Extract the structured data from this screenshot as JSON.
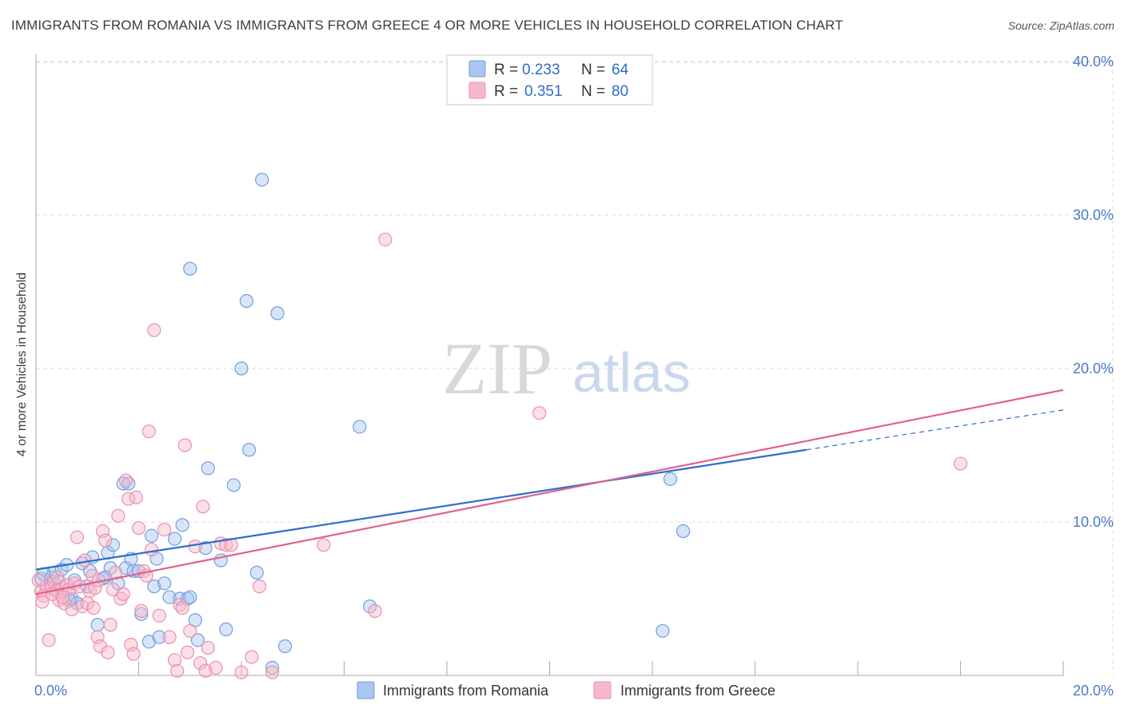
{
  "title": "IMMIGRANTS FROM ROMANIA VS IMMIGRANTS FROM GREECE 4 OR MORE VEHICLES IN HOUSEHOLD CORRELATION CHART",
  "source": "Source: ZipAtlas.com",
  "watermark": {
    "zip": "ZIP",
    "atlas": "atlas"
  },
  "colors": {
    "romania_fill": "#a9c6f0",
    "romania_stroke": "#6f9ee0",
    "romania_line": "#2f6cc9",
    "greece_fill": "#f6b9cc",
    "greece_stroke": "#ec8fac",
    "greece_line": "#e0628e",
    "value_text": "#2f6cc9"
  },
  "legend": {
    "rows": [
      {
        "r_label": "R =",
        "r_value": "0.233",
        "n_label": "N =",
        "n_value": "64"
      },
      {
        "r_label": "R =",
        "r_value": "0.351",
        "n_label": "N =",
        "n_value": "80"
      }
    ]
  },
  "chart_data": {
    "type": "scatter",
    "title": "IMMIGRANTS FROM ROMANIA VS IMMIGRANTS FROM GREECE 4 OR MORE VEHICLES IN HOUSEHOLD CORRELATION CHART",
    "xlabel": "",
    "ylabel": "4 or more Vehicles in Household",
    "xlim": [
      0,
      20
    ],
    "ylim": [
      0,
      40
    ],
    "x_tick_labels": [
      "0.0%",
      "20.0%"
    ],
    "y_ticks": [
      10,
      20,
      30,
      40
    ],
    "y_tick_labels": [
      "10.0%",
      "20.0%",
      "30.0%",
      "40.0%"
    ],
    "grid": true,
    "legend_position": "top-center",
    "series": [
      {
        "name": "Immigrants from Romania",
        "r": 0.233,
        "n": 64,
        "trend": {
          "x_start": 0,
          "y_start": 6.9,
          "x_solid_end": 15.0,
          "y_solid_end": 14.7,
          "x_end": 20,
          "y_end": 17.3
        },
        "points": [
          [
            0.1,
            6.3
          ],
          [
            0.2,
            5.8
          ],
          [
            0.3,
            6.4
          ],
          [
            0.35,
            6.7
          ],
          [
            0.4,
            5.5
          ],
          [
            0.5,
            6.9
          ],
          [
            0.6,
            7.2
          ],
          [
            0.7,
            5.0
          ],
          [
            0.75,
            6.2
          ],
          [
            0.8,
            4.7
          ],
          [
            0.9,
            7.3
          ],
          [
            1.0,
            5.8
          ],
          [
            1.05,
            6.8
          ],
          [
            1.1,
            7.7
          ],
          [
            1.2,
            3.3
          ],
          [
            1.3,
            6.3
          ],
          [
            1.4,
            8.0
          ],
          [
            1.45,
            7.0
          ],
          [
            1.5,
            8.5
          ],
          [
            1.6,
            6.0
          ],
          [
            1.7,
            12.5
          ],
          [
            1.75,
            7.0
          ],
          [
            1.8,
            12.5
          ],
          [
            1.85,
            7.6
          ],
          [
            1.9,
            6.8
          ],
          [
            2.0,
            6.8
          ],
          [
            2.05,
            4.0
          ],
          [
            2.2,
            2.2
          ],
          [
            2.25,
            9.1
          ],
          [
            2.3,
            5.8
          ],
          [
            2.35,
            7.6
          ],
          [
            2.4,
            2.5
          ],
          [
            2.5,
            6.0
          ],
          [
            2.6,
            5.1
          ],
          [
            2.7,
            8.9
          ],
          [
            2.8,
            5.0
          ],
          [
            2.85,
            9.8
          ],
          [
            2.95,
            5.0
          ],
          [
            3.0,
            5.1
          ],
          [
            3.1,
            3.6
          ],
          [
            3.15,
            2.3
          ],
          [
            3.0,
            26.5
          ],
          [
            3.3,
            8.3
          ],
          [
            3.35,
            13.5
          ],
          [
            3.6,
            7.5
          ],
          [
            3.7,
            3.0
          ],
          [
            3.85,
            12.4
          ],
          [
            4.0,
            20.0
          ],
          [
            4.1,
            24.4
          ],
          [
            4.15,
            14.7
          ],
          [
            4.3,
            6.7
          ],
          [
            4.4,
            32.3
          ],
          [
            4.6,
            0.5
          ],
          [
            4.7,
            23.6
          ],
          [
            4.85,
            1.9
          ],
          [
            6.3,
            16.2
          ],
          [
            6.5,
            4.5
          ],
          [
            12.2,
            2.9
          ],
          [
            12.35,
            12.8
          ],
          [
            12.6,
            9.4
          ],
          [
            0.15,
            6.6
          ],
          [
            0.45,
            6.1
          ],
          [
            0.65,
            4.9
          ],
          [
            1.35,
            6.4
          ]
        ]
      },
      {
        "name": "Immigrants from Greece",
        "r": 0.351,
        "n": 80,
        "trend": {
          "x_start": 0,
          "y_start": 5.3,
          "x_end": 20,
          "y_end": 18.6
        },
        "points": [
          [
            0.1,
            5.5
          ],
          [
            0.15,
            5.2
          ],
          [
            0.2,
            5.8
          ],
          [
            0.25,
            2.3
          ],
          [
            0.3,
            5.7
          ],
          [
            0.35,
            6.1
          ],
          [
            0.4,
            5.5
          ],
          [
            0.45,
            4.9
          ],
          [
            0.5,
            5.7
          ],
          [
            0.55,
            4.7
          ],
          [
            0.6,
            5.9
          ],
          [
            0.65,
            5.6
          ],
          [
            0.7,
            4.3
          ],
          [
            0.75,
            6.0
          ],
          [
            0.8,
            9.0
          ],
          [
            0.85,
            5.8
          ],
          [
            0.9,
            4.5
          ],
          [
            0.95,
            7.5
          ],
          [
            1.0,
            4.7
          ],
          [
            1.05,
            5.5
          ],
          [
            1.1,
            6.5
          ],
          [
            1.15,
            5.7
          ],
          [
            1.2,
            2.5
          ],
          [
            1.25,
            1.9
          ],
          [
            1.3,
            9.4
          ],
          [
            1.35,
            8.8
          ],
          [
            1.4,
            1.5
          ],
          [
            1.45,
            3.3
          ],
          [
            1.5,
            5.6
          ],
          [
            1.55,
            6.7
          ],
          [
            1.6,
            10.4
          ],
          [
            1.65,
            5.0
          ],
          [
            1.7,
            5.3
          ],
          [
            1.75,
            12.7
          ],
          [
            1.8,
            11.5
          ],
          [
            1.85,
            2.0
          ],
          [
            1.9,
            1.4
          ],
          [
            1.95,
            11.6
          ],
          [
            2.0,
            9.6
          ],
          [
            2.05,
            4.2
          ],
          [
            2.1,
            6.8
          ],
          [
            2.15,
            6.5
          ],
          [
            2.2,
            15.9
          ],
          [
            2.25,
            8.2
          ],
          [
            2.3,
            22.5
          ],
          [
            2.4,
            3.9
          ],
          [
            2.5,
            9.5
          ],
          [
            2.6,
            2.5
          ],
          [
            2.7,
            1.0
          ],
          [
            2.75,
            0.3
          ],
          [
            2.8,
            4.6
          ],
          [
            2.85,
            4.4
          ],
          [
            2.9,
            15.0
          ],
          [
            2.95,
            1.5
          ],
          [
            3.0,
            2.9
          ],
          [
            3.1,
            8.4
          ],
          [
            3.2,
            0.8
          ],
          [
            3.25,
            11.0
          ],
          [
            3.3,
            0.3
          ],
          [
            3.35,
            1.8
          ],
          [
            3.5,
            0.5
          ],
          [
            3.6,
            8.6
          ],
          [
            3.7,
            8.5
          ],
          [
            3.8,
            8.5
          ],
          [
            4.0,
            0.2
          ],
          [
            4.2,
            1.2
          ],
          [
            4.35,
            5.8
          ],
          [
            4.6,
            0.2
          ],
          [
            5.6,
            8.5
          ],
          [
            6.6,
            4.2
          ],
          [
            6.8,
            28.4
          ],
          [
            9.8,
            17.1
          ],
          [
            18.0,
            13.8
          ],
          [
            0.05,
            6.2
          ],
          [
            0.12,
            4.8
          ],
          [
            0.32,
            5.3
          ],
          [
            0.42,
            6.4
          ],
          [
            0.52,
            5.1
          ],
          [
            1.12,
            4.4
          ],
          [
            1.22,
            6.2
          ]
        ]
      }
    ]
  },
  "bottom_legend": {
    "items": [
      {
        "label": "Immigrants from Romania"
      },
      {
        "label": "Immigrants from Greece"
      }
    ]
  }
}
